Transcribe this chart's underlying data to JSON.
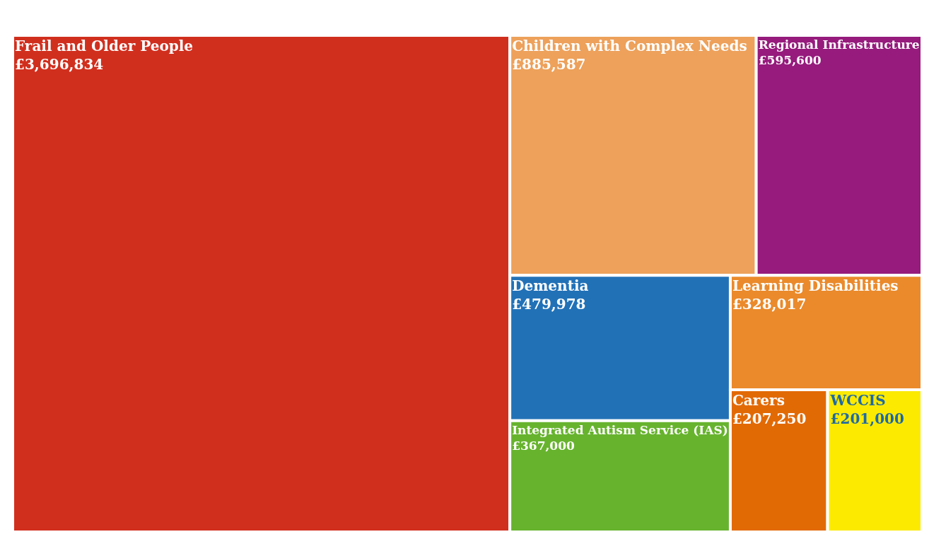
{
  "chart_data": {
    "type": "other",
    "categories": [
      "Frail and Older People",
      "Children with Complex Needs",
      "Regional Infrastructure",
      "Dementia",
      "Integrated Autism Service (IAS)",
      "Learning Disabilities",
      "Carers",
      "WCCIS"
    ],
    "values": [
      3696834,
      885587,
      595600,
      479978,
      367000,
      328017,
      207250,
      201000
    ],
    "value_labels": [
      "£3,696,834",
      "£885,587",
      "£595,600",
      "£479,978",
      "£367,000",
      "£328,017",
      "£207,250",
      "£201,000"
    ],
    "colors": [
      "#d12f1e",
      "#eda15b",
      "#961b7d",
      "#2171b7",
      "#67b32e",
      "#ea8a2b",
      "#e26a05",
      "#fcea00"
    ]
  }
}
